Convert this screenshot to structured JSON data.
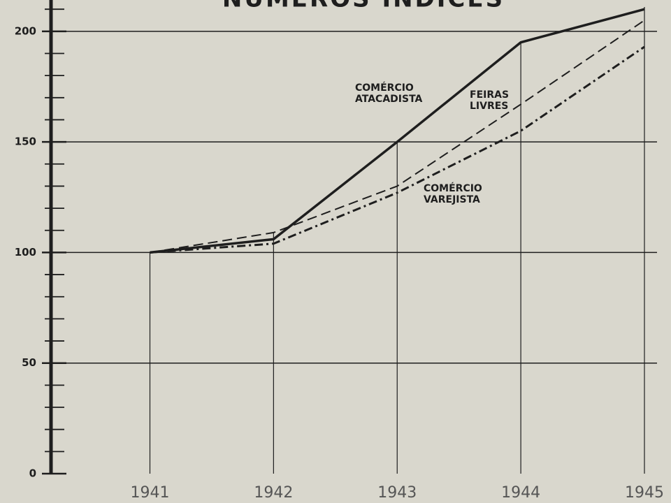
{
  "chart_data": {
    "type": "line",
    "title": "NÚMEROS ÍNDICES",
    "x": [
      1941,
      1942,
      1943,
      1944,
      1945
    ],
    "series": [
      {
        "name": "COMÉRCIO ATACADISTA",
        "color": "#1e1e1e",
        "style": "solid",
        "values": [
          100,
          106,
          150,
          195,
          210
        ]
      },
      {
        "name": "FEIRAS LIVRES",
        "color": "#1e1e1e",
        "style": "dashed",
        "values": [
          100,
          109,
          130,
          167,
          205
        ]
      },
      {
        "name": "COMÉRCIO VAREJISTA",
        "color": "#1e1e1e",
        "style": "dashdot",
        "values": [
          100,
          104,
          127,
          155,
          193
        ]
      }
    ],
    "xlim": [
      1940.2,
      1945
    ],
    "xticks": [
      1941,
      1942,
      1943,
      1944,
      1945
    ],
    "ylim": [
      0,
      211
    ],
    "yticks": [
      0,
      50,
      100,
      150,
      200
    ],
    "minor_yticks": [
      10,
      20,
      30,
      40,
      60,
      70,
      80,
      90,
      110,
      120,
      130,
      140,
      160,
      170,
      180,
      190,
      210
    ],
    "grid": true
  }
}
